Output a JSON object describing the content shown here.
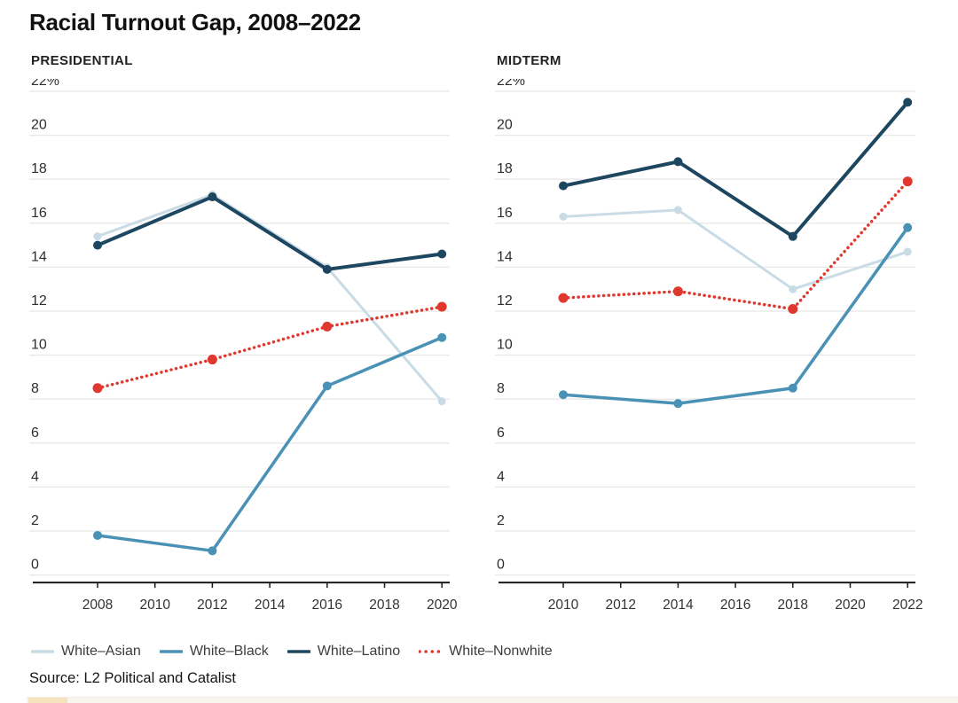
{
  "page": {
    "title": "Racial Turnout Gap, 2008–2022"
  },
  "source": {
    "text": "Source: L2 Political and Catalist"
  },
  "colors": {
    "white_asian": "#c9dce6",
    "white_black": "#4a92b5",
    "white_latino": "#1d4660",
    "white_nonwhite": "#e0372e",
    "gridline": "#e8e8e8",
    "axis": "#1a1a1a",
    "tick_text": "#2e2e2e"
  },
  "legend": {
    "items": [
      {
        "label": "White–Asian",
        "color": "#c9dce6",
        "style": "solid"
      },
      {
        "label": "White–Black",
        "color": "#4a92b5",
        "style": "solid"
      },
      {
        "label": "White–Latino",
        "color": "#1d4660",
        "style": "solid"
      },
      {
        "label": "White–Nonwhite",
        "color": "#e0372e",
        "style": "dotted"
      }
    ]
  },
  "chart_data": [
    {
      "type": "line",
      "title": "PRESIDENTIAL",
      "x": [
        2008,
        2012,
        2016,
        2020
      ],
      "axis_ticks": [
        "2008",
        "2010",
        "2012",
        "2014",
        "2016",
        "2018",
        "2020"
      ],
      "ylim": [
        0,
        22
      ],
      "ytick_step": 2,
      "ytick_labels": [
        "22%",
        "20",
        "18",
        "16",
        "14",
        "12",
        "10",
        "8",
        "6",
        "4",
        "2",
        "0"
      ],
      "grid": true,
      "legend_position": "bottom",
      "series": [
        {
          "name": "White–Asian",
          "color": "#c9dce6",
          "style": "solid",
          "values": [
            15.4,
            17.3,
            14.0,
            7.9
          ]
        },
        {
          "name": "White–Black",
          "color": "#4a92b5",
          "style": "solid",
          "values": [
            1.8,
            1.1,
            8.6,
            10.8
          ]
        },
        {
          "name": "White–Latino",
          "color": "#1d4660",
          "style": "solid",
          "values": [
            15.0,
            17.2,
            13.9,
            14.6
          ]
        },
        {
          "name": "White–Nonwhite",
          "color": "#e0372e",
          "style": "dotted",
          "values": [
            8.5,
            9.8,
            11.3,
            12.2
          ]
        }
      ]
    },
    {
      "type": "line",
      "title": "MIDTERM",
      "x": [
        2010,
        2014,
        2018,
        2022
      ],
      "axis_ticks": [
        "2010",
        "2012",
        "2014",
        "2016",
        "2018",
        "2020",
        "2022"
      ],
      "ylim": [
        0,
        22
      ],
      "ytick_step": 2,
      "ytick_labels": [
        "22%",
        "20",
        "18",
        "16",
        "14",
        "12",
        "10",
        "8",
        "6",
        "4",
        "2",
        "0"
      ],
      "grid": true,
      "legend_position": "bottom",
      "series": [
        {
          "name": "White–Asian",
          "color": "#c9dce6",
          "style": "solid",
          "values": [
            16.3,
            16.6,
            13.0,
            14.7
          ]
        },
        {
          "name": "White–Black",
          "color": "#4a92b5",
          "style": "solid",
          "values": [
            8.2,
            7.8,
            8.5,
            15.8
          ]
        },
        {
          "name": "White–Latino",
          "color": "#1d4660",
          "style": "solid",
          "values": [
            17.7,
            18.8,
            15.4,
            21.5
          ]
        },
        {
          "name": "White–Nonwhite",
          "color": "#e0372e",
          "style": "dotted",
          "values": [
            12.6,
            12.9,
            12.1,
            17.9
          ]
        }
      ]
    }
  ]
}
